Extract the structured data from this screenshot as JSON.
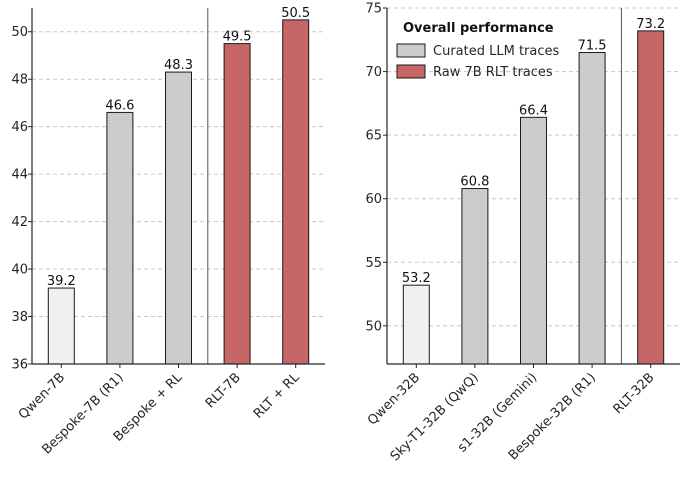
{
  "chart_data": [
    {
      "type": "bar",
      "categories": [
        "Qwen-7B",
        "Bespoke-7B (R1)",
        "Bespoke + RL",
        "RLT-7B",
        "RLT + RL"
      ],
      "values": [
        39.2,
        46.6,
        48.3,
        49.5,
        50.5
      ],
      "value_labels": [
        "39.2",
        "46.6",
        "48.3",
        "49.5",
        "50.5"
      ],
      "groups": [
        "base",
        "curated",
        "curated",
        "rlt",
        "rlt"
      ],
      "ylim": [
        36,
        51
      ],
      "yticks": [
        36,
        38,
        40,
        42,
        44,
        46,
        48,
        50
      ],
      "separator_after_index": 2,
      "grid": "horizontal-dashed",
      "xtick_rotation": -45
    },
    {
      "type": "bar",
      "categories": [
        "Qwen-32B",
        "Sky-T1-32B (QwQ)",
        "s1-32B (Gemini)",
        "Bespoke-32B (R1)",
        "RLT-32B"
      ],
      "values": [
        53.2,
        60.8,
        66.4,
        71.5,
        73.2
      ],
      "value_labels": [
        "53.2",
        "60.8",
        "66.4",
        "71.5",
        "73.2"
      ],
      "groups": [
        "base",
        "curated",
        "curated",
        "curated",
        "rlt"
      ],
      "ylim": [
        47,
        75
      ],
      "yticks": [
        50,
        55,
        60,
        65,
        70,
        75
      ],
      "separator_after_index": 3,
      "grid": "horizontal-dashed",
      "xtick_rotation": -45,
      "legend": {
        "title": "Overall performance",
        "position": "top-left",
        "entries": [
          {
            "label": "Curated LLM traces",
            "group": "curated"
          },
          {
            "label": "Raw 7B RLT traces",
            "group": "rlt"
          }
        ]
      }
    }
  ],
  "colors": {
    "base": "#f0f0f0",
    "curated": "#cccccc",
    "rlt": "#c76666",
    "bar_edge": "#1a1a1a",
    "grid": "#c8c8c8",
    "axis": "#262626"
  }
}
